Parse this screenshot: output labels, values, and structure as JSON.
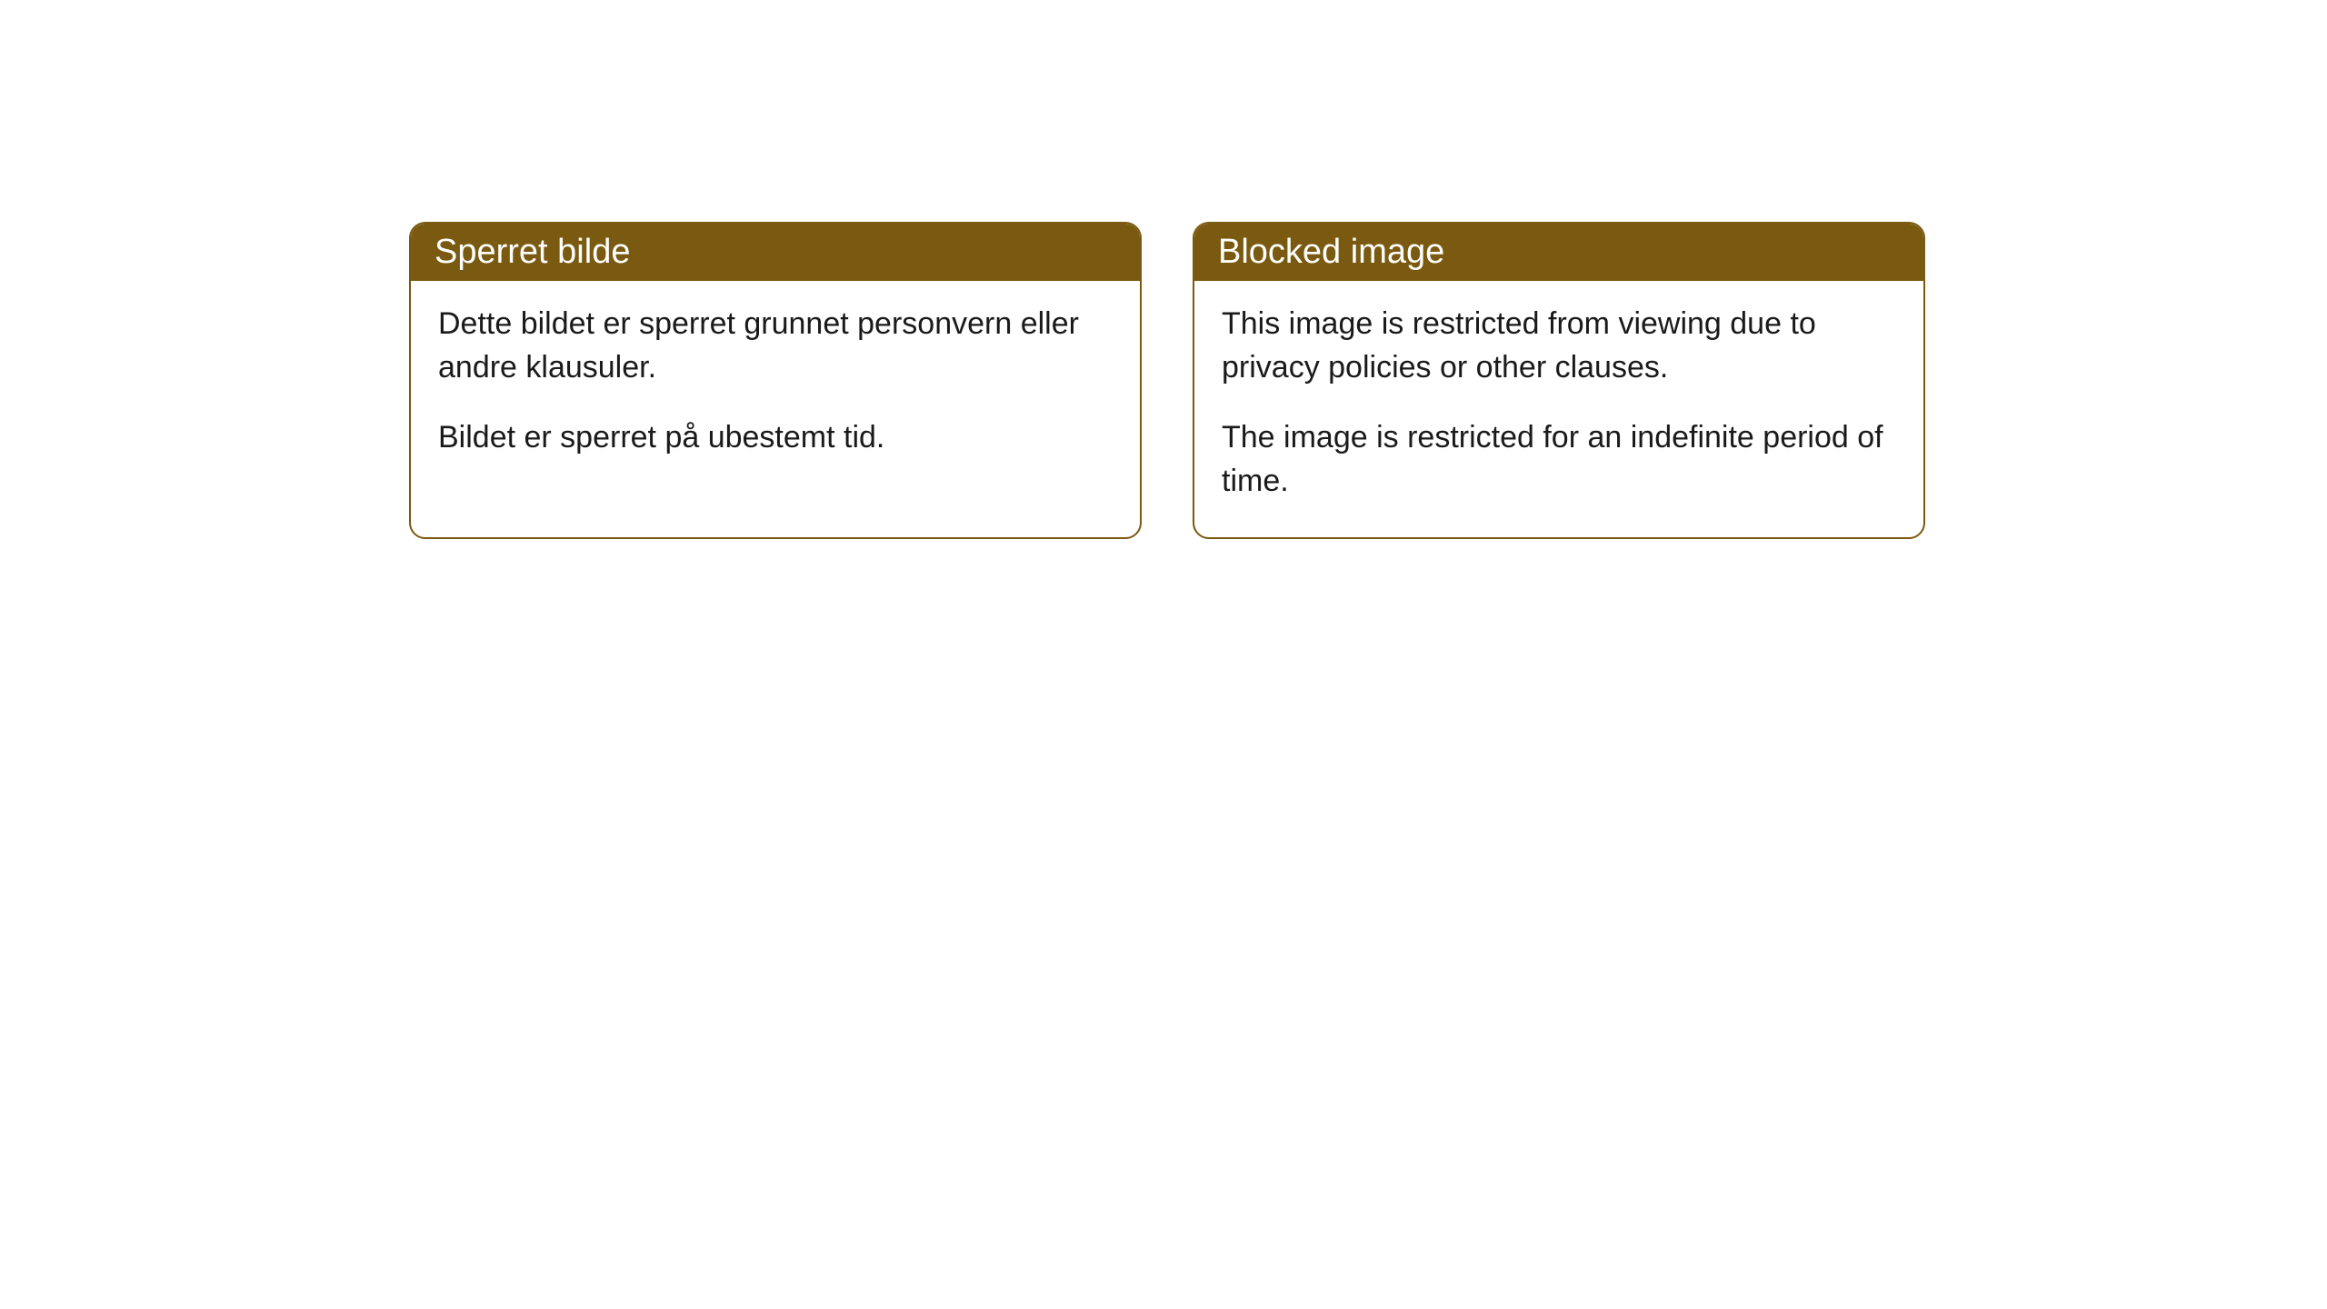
{
  "cards": [
    {
      "title": "Sperret bilde",
      "para1": "Dette bildet er sperret grunnet personvern eller andre klausuler.",
      "para2": "Bildet er sperret på ubestemt tid."
    },
    {
      "title": "Blocked image",
      "para1": "This image is restricted from viewing due to privacy policies or other clauses.",
      "para2": "The image is restricted for an indefinite period of time."
    }
  ],
  "style": {
    "header_bg": "#7a5a10",
    "header_text_color": "#ffffff",
    "border_color": "#7a5a10",
    "body_bg": "#ffffff",
    "body_text_color": "#1a1a1a",
    "border_radius": 18,
    "title_fontsize": 38,
    "body_fontsize": 34
  }
}
